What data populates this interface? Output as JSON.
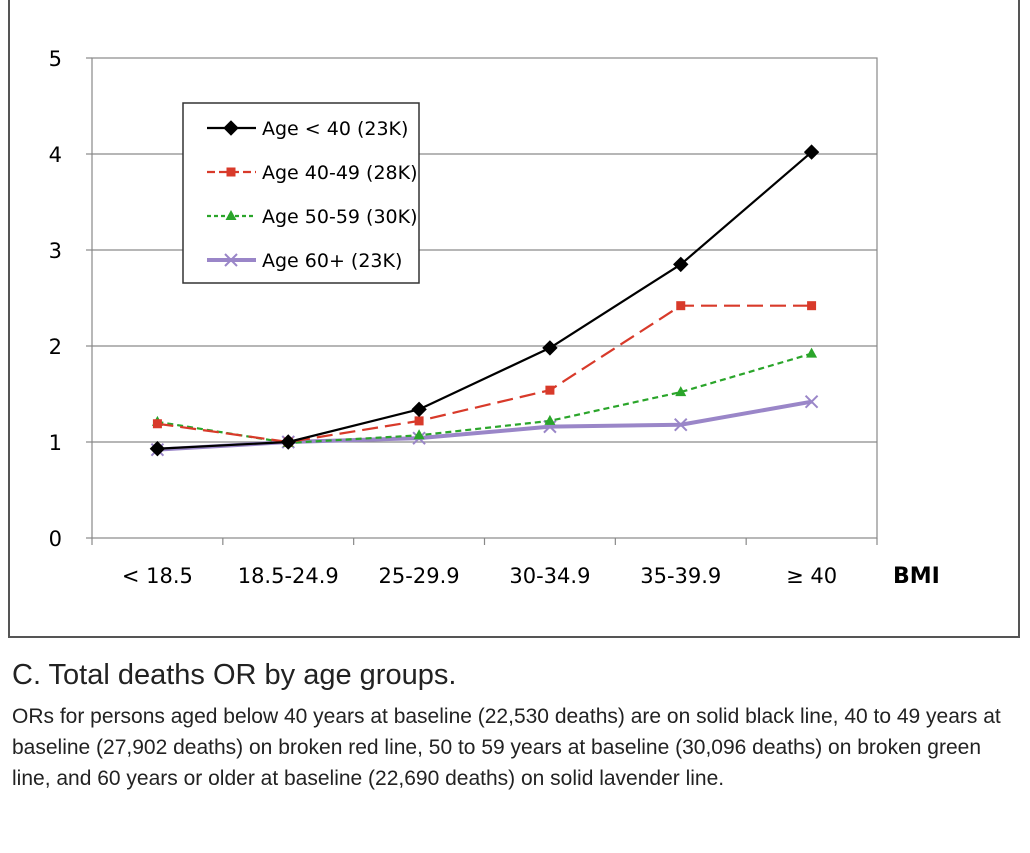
{
  "chart_data": {
    "type": "line",
    "title": "",
    "xlabel": "BMI",
    "ylabel": "",
    "categories": [
      "< 18.5",
      "18.5-24.9",
      "25-29.9",
      "30-34.9",
      "35-39.9",
      "≥ 40"
    ],
    "ylim": [
      0,
      5
    ],
    "yticks": [
      "0",
      "1",
      "2",
      "3",
      "4",
      "5"
    ],
    "grid": true,
    "legend_position": "top-left",
    "series": [
      {
        "name": "Age < 40 (23K)",
        "values": [
          0.93,
          1.0,
          1.34,
          1.98,
          2.85,
          4.02
        ],
        "color": "#000000",
        "line": "solid",
        "marker": "diamond"
      },
      {
        "name": "Age 40-49 (28K)",
        "values": [
          1.19,
          1.0,
          1.22,
          1.54,
          2.42,
          2.42
        ],
        "color": "#d83a2a",
        "line": "dashed",
        "marker": "square"
      },
      {
        "name": "Age 50-59 (30K)",
        "values": [
          1.21,
          0.99,
          1.07,
          1.22,
          1.52,
          1.92
        ],
        "color": "#2aa52a",
        "line": "dotted",
        "marker": "triangle"
      },
      {
        "name": "Age 60+ (23K)",
        "values": [
          0.92,
          1.0,
          1.04,
          1.16,
          1.18,
          1.42
        ],
        "color": "#9a86c8",
        "line": "solid",
        "marker": "x"
      }
    ]
  },
  "caption": {
    "title": "C. Total deaths OR by age groups.",
    "body": "ORs for persons aged below 40 years at baseline (22,530 deaths) are on solid black line, 40 to 49 years at baseline (27,902 deaths) on broken red line, 50 to 59 years at baseline (30,096 deaths) on broken green line, and 60 years or older at baseline (22,690 deaths) on solid lavender line."
  }
}
